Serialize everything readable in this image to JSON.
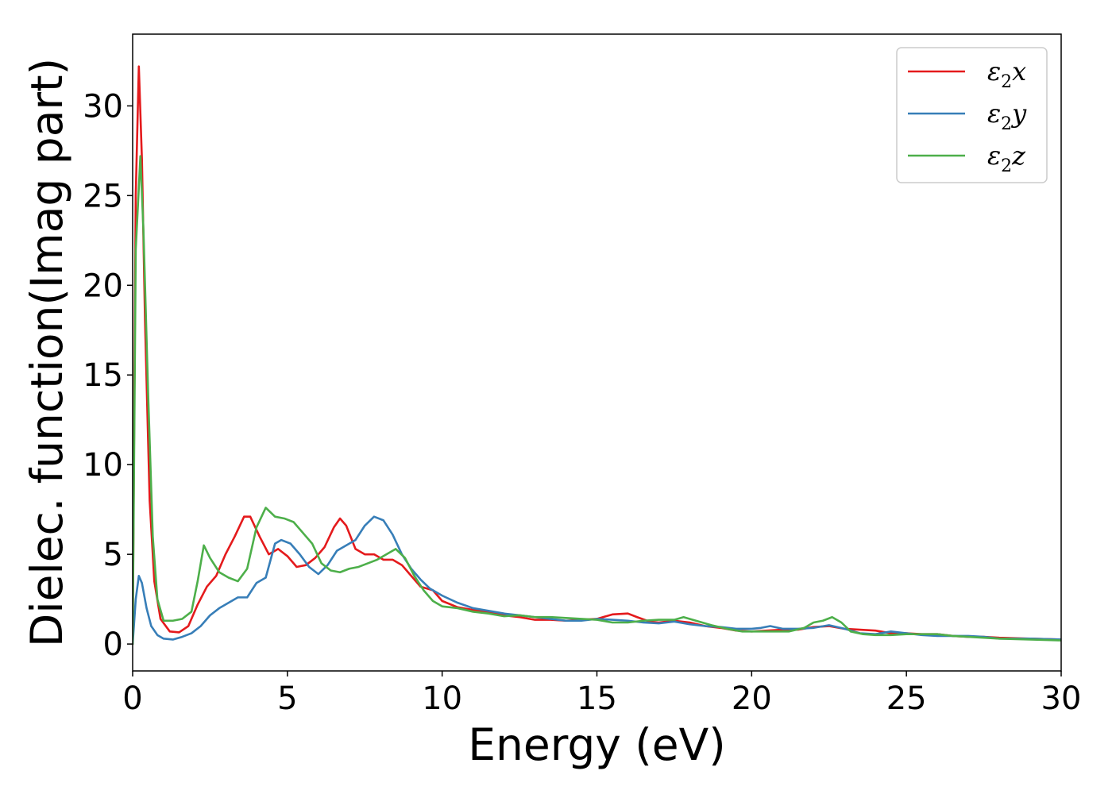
{
  "chart_data": {
    "type": "line",
    "title": "",
    "xlabel": "Energy (eV)",
    "ylabel": "Dielec. function(Imag part)",
    "xlim": [
      0,
      30
    ],
    "ylim": [
      -1.5,
      34
    ],
    "xticks": [
      0,
      5,
      10,
      15,
      20,
      25,
      30
    ],
    "yticks": [
      0,
      5,
      10,
      15,
      20,
      25,
      30
    ],
    "grid": false,
    "legend_position": "top-right",
    "series": [
      {
        "name": "ε₂x",
        "label_base": "ε",
        "label_sub": "2",
        "label_var": "x",
        "color": "#e41a1c",
        "points": [
          [
            0,
            0
          ],
          [
            0.1,
            25
          ],
          [
            0.2,
            32.2
          ],
          [
            0.3,
            27
          ],
          [
            0.4,
            18
          ],
          [
            0.55,
            8
          ],
          [
            0.7,
            3.5
          ],
          [
            0.9,
            1.4
          ],
          [
            1.2,
            0.7
          ],
          [
            1.5,
            0.65
          ],
          [
            1.8,
            1.0
          ],
          [
            2.1,
            2.2
          ],
          [
            2.4,
            3.2
          ],
          [
            2.7,
            3.8
          ],
          [
            3.0,
            5.0
          ],
          [
            3.3,
            6.0
          ],
          [
            3.6,
            7.1
          ],
          [
            3.8,
            7.1
          ],
          [
            4.1,
            6.0
          ],
          [
            4.4,
            5.0
          ],
          [
            4.7,
            5.3
          ],
          [
            5.0,
            4.9
          ],
          [
            5.3,
            4.3
          ],
          [
            5.6,
            4.4
          ],
          [
            5.9,
            4.8
          ],
          [
            6.2,
            5.4
          ],
          [
            6.5,
            6.5
          ],
          [
            6.7,
            7.0
          ],
          [
            6.9,
            6.6
          ],
          [
            7.2,
            5.3
          ],
          [
            7.5,
            5.0
          ],
          [
            7.8,
            5.0
          ],
          [
            8.1,
            4.7
          ],
          [
            8.4,
            4.7
          ],
          [
            8.7,
            4.4
          ],
          [
            9.0,
            3.8
          ],
          [
            9.3,
            3.2
          ],
          [
            9.7,
            3.0
          ],
          [
            10.0,
            2.4
          ],
          [
            10.5,
            2.05
          ],
          [
            11.0,
            1.9
          ],
          [
            11.5,
            1.75
          ],
          [
            12.0,
            1.6
          ],
          [
            12.5,
            1.5
          ],
          [
            13.0,
            1.35
          ],
          [
            13.5,
            1.35
          ],
          [
            14.0,
            1.3
          ],
          [
            14.5,
            1.35
          ],
          [
            15.0,
            1.4
          ],
          [
            15.5,
            1.65
          ],
          [
            16.0,
            1.7
          ],
          [
            16.3,
            1.5
          ],
          [
            16.7,
            1.25
          ],
          [
            17.0,
            1.2
          ],
          [
            17.5,
            1.3
          ],
          [
            18.0,
            1.2
          ],
          [
            18.5,
            1.0
          ],
          [
            19.0,
            0.9
          ],
          [
            19.5,
            0.75
          ],
          [
            20.0,
            0.7
          ],
          [
            20.5,
            0.75
          ],
          [
            21.0,
            0.8
          ],
          [
            21.5,
            0.8
          ],
          [
            22.0,
            0.95
          ],
          [
            22.5,
            1.0
          ],
          [
            23.0,
            0.85
          ],
          [
            23.5,
            0.8
          ],
          [
            24.0,
            0.75
          ],
          [
            24.5,
            0.6
          ],
          [
            25.0,
            0.6
          ],
          [
            25.5,
            0.55
          ],
          [
            26.0,
            0.55
          ],
          [
            26.5,
            0.45
          ],
          [
            27.0,
            0.4
          ],
          [
            27.5,
            0.4
          ],
          [
            28.0,
            0.35
          ],
          [
            29.0,
            0.3
          ],
          [
            30.0,
            0.25
          ]
        ]
      },
      {
        "name": "ε₂y",
        "label_base": "ε",
        "label_sub": "2",
        "label_var": "y",
        "color": "#377eb8",
        "points": [
          [
            0,
            0
          ],
          [
            0.1,
            2.5
          ],
          [
            0.2,
            3.8
          ],
          [
            0.3,
            3.4
          ],
          [
            0.45,
            2.0
          ],
          [
            0.6,
            1.0
          ],
          [
            0.8,
            0.5
          ],
          [
            1.0,
            0.3
          ],
          [
            1.3,
            0.25
          ],
          [
            1.6,
            0.4
          ],
          [
            1.9,
            0.6
          ],
          [
            2.2,
            1.0
          ],
          [
            2.5,
            1.6
          ],
          [
            2.8,
            2.0
          ],
          [
            3.1,
            2.3
          ],
          [
            3.4,
            2.6
          ],
          [
            3.7,
            2.6
          ],
          [
            4.0,
            3.4
          ],
          [
            4.3,
            3.7
          ],
          [
            4.6,
            5.6
          ],
          [
            4.8,
            5.8
          ],
          [
            5.1,
            5.6
          ],
          [
            5.4,
            5.0
          ],
          [
            5.7,
            4.3
          ],
          [
            6.0,
            3.9
          ],
          [
            6.3,
            4.4
          ],
          [
            6.6,
            5.2
          ],
          [
            6.9,
            5.5
          ],
          [
            7.2,
            5.8
          ],
          [
            7.5,
            6.6
          ],
          [
            7.8,
            7.1
          ],
          [
            8.1,
            6.9
          ],
          [
            8.4,
            6.1
          ],
          [
            8.7,
            5.0
          ],
          [
            9.0,
            4.2
          ],
          [
            9.3,
            3.6
          ],
          [
            9.6,
            3.1
          ],
          [
            10.0,
            2.7
          ],
          [
            10.5,
            2.3
          ],
          [
            11.0,
            2.0
          ],
          [
            11.5,
            1.85
          ],
          [
            12.0,
            1.7
          ],
          [
            12.5,
            1.6
          ],
          [
            13.0,
            1.5
          ],
          [
            13.5,
            1.4
          ],
          [
            14.0,
            1.3
          ],
          [
            14.5,
            1.3
          ],
          [
            15.0,
            1.4
          ],
          [
            15.5,
            1.35
          ],
          [
            16.0,
            1.3
          ],
          [
            16.5,
            1.2
          ],
          [
            17.0,
            1.15
          ],
          [
            17.5,
            1.25
          ],
          [
            18.0,
            1.1
          ],
          [
            18.5,
            1.0
          ],
          [
            19.0,
            0.95
          ],
          [
            19.5,
            0.85
          ],
          [
            20.0,
            0.85
          ],
          [
            20.3,
            0.9
          ],
          [
            20.6,
            1.0
          ],
          [
            21.0,
            0.85
          ],
          [
            21.5,
            0.85
          ],
          [
            22.0,
            0.9
          ],
          [
            22.5,
            1.05
          ],
          [
            23.0,
            0.85
          ],
          [
            23.5,
            0.6
          ],
          [
            24.0,
            0.55
          ],
          [
            24.5,
            0.7
          ],
          [
            25.0,
            0.6
          ],
          [
            25.5,
            0.5
          ],
          [
            26.0,
            0.45
          ],
          [
            26.5,
            0.45
          ],
          [
            27.0,
            0.45
          ],
          [
            27.5,
            0.4
          ],
          [
            28.0,
            0.3
          ],
          [
            29.0,
            0.3
          ],
          [
            30.0,
            0.25
          ]
        ]
      },
      {
        "name": "ε₂z",
        "label_base": "ε",
        "label_sub": "2",
        "label_var": "z",
        "color": "#4daf4a",
        "points": [
          [
            0,
            0
          ],
          [
            0.1,
            22
          ],
          [
            0.25,
            27.2
          ],
          [
            0.35,
            23
          ],
          [
            0.5,
            14
          ],
          [
            0.65,
            6
          ],
          [
            0.8,
            2.5
          ],
          [
            1.0,
            1.3
          ],
          [
            1.3,
            1.3
          ],
          [
            1.6,
            1.4
          ],
          [
            1.9,
            1.8
          ],
          [
            2.1,
            3.5
          ],
          [
            2.3,
            5.5
          ],
          [
            2.5,
            4.8
          ],
          [
            2.8,
            4.0
          ],
          [
            3.1,
            3.7
          ],
          [
            3.4,
            3.5
          ],
          [
            3.7,
            4.2
          ],
          [
            4.0,
            6.5
          ],
          [
            4.3,
            7.6
          ],
          [
            4.6,
            7.1
          ],
          [
            4.9,
            7.0
          ],
          [
            5.2,
            6.8
          ],
          [
            5.5,
            6.2
          ],
          [
            5.8,
            5.6
          ],
          [
            6.1,
            4.5
          ],
          [
            6.4,
            4.1
          ],
          [
            6.7,
            4.0
          ],
          [
            7.0,
            4.2
          ],
          [
            7.3,
            4.3
          ],
          [
            7.6,
            4.5
          ],
          [
            7.9,
            4.7
          ],
          [
            8.2,
            5.0
          ],
          [
            8.5,
            5.3
          ],
          [
            8.8,
            4.8
          ],
          [
            9.1,
            3.8
          ],
          [
            9.4,
            3.0
          ],
          [
            9.7,
            2.4
          ],
          [
            10.0,
            2.1
          ],
          [
            10.5,
            2.0
          ],
          [
            11.0,
            1.8
          ],
          [
            11.5,
            1.7
          ],
          [
            12.0,
            1.55
          ],
          [
            12.5,
            1.6
          ],
          [
            13.0,
            1.5
          ],
          [
            13.5,
            1.5
          ],
          [
            14.0,
            1.45
          ],
          [
            14.5,
            1.4
          ],
          [
            15.0,
            1.35
          ],
          [
            15.5,
            1.2
          ],
          [
            16.0,
            1.2
          ],
          [
            16.5,
            1.3
          ],
          [
            17.0,
            1.35
          ],
          [
            17.5,
            1.35
          ],
          [
            17.8,
            1.5
          ],
          [
            18.2,
            1.3
          ],
          [
            18.7,
            1.05
          ],
          [
            19.2,
            0.85
          ],
          [
            19.7,
            0.7
          ],
          [
            20.2,
            0.7
          ],
          [
            20.7,
            0.7
          ],
          [
            21.2,
            0.7
          ],
          [
            21.7,
            0.9
          ],
          [
            22.0,
            1.2
          ],
          [
            22.3,
            1.3
          ],
          [
            22.6,
            1.5
          ],
          [
            22.9,
            1.2
          ],
          [
            23.2,
            0.7
          ],
          [
            23.6,
            0.55
          ],
          [
            24.0,
            0.5
          ],
          [
            24.5,
            0.5
          ],
          [
            25.0,
            0.55
          ],
          [
            25.5,
            0.55
          ],
          [
            26.0,
            0.55
          ],
          [
            26.5,
            0.45
          ],
          [
            27.0,
            0.4
          ],
          [
            27.5,
            0.35
          ],
          [
            28.0,
            0.3
          ],
          [
            29.0,
            0.25
          ],
          [
            30.0,
            0.2
          ]
        ]
      }
    ]
  }
}
